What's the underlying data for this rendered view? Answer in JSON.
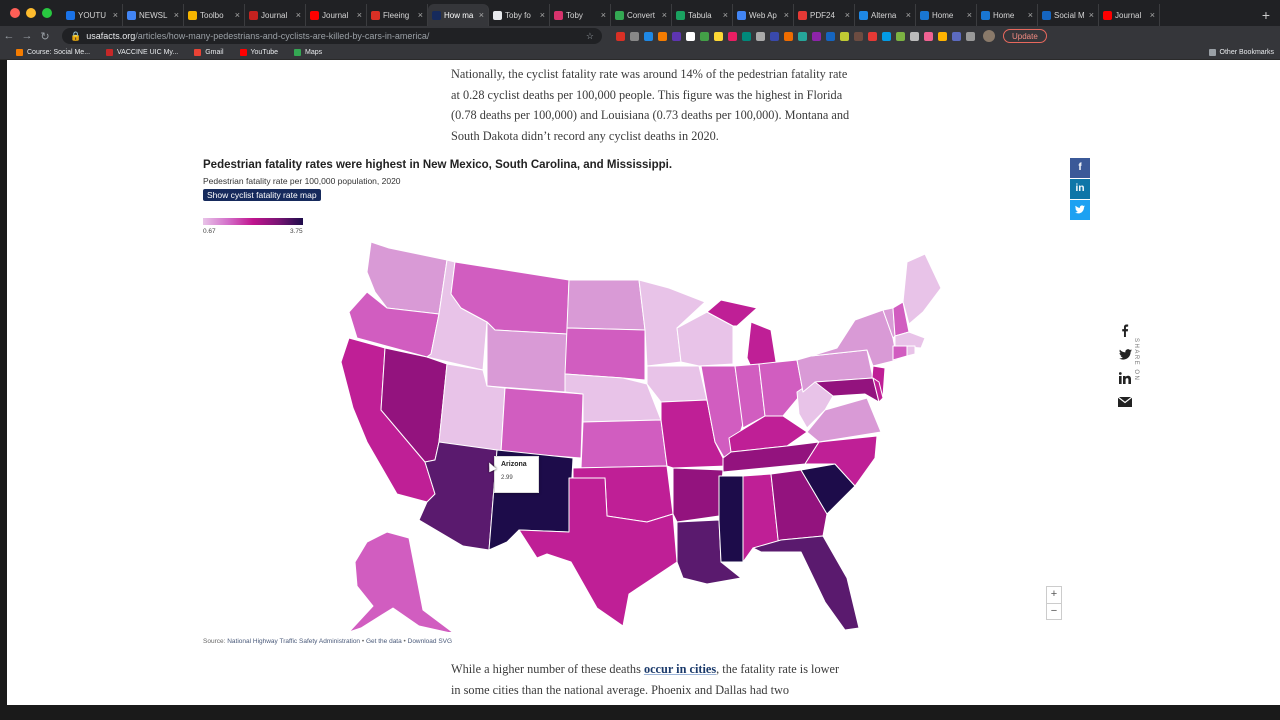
{
  "browser": {
    "tabs": [
      {
        "label": "YOUTU",
        "fav": "#1a73e8"
      },
      {
        "label": "NEWSL",
        "fav": "#4285f4"
      },
      {
        "label": "Toolbo",
        "fav": "#f4b400"
      },
      {
        "label": "Journal",
        "fav": "#c5221f"
      },
      {
        "label": "Journal",
        "fav": "#ff0000"
      },
      {
        "label": "Fleeing",
        "fav": "#d93025"
      },
      {
        "label": "How ma",
        "fav": "#162a5c",
        "active": true
      },
      {
        "label": "Toby fo",
        "fav": "#e8eaed"
      },
      {
        "label": "Toby",
        "fav": "#d6336c"
      },
      {
        "label": "Convert",
        "fav": "#34a853"
      },
      {
        "label": "Tabula",
        "fav": "#1aa260"
      },
      {
        "label": "Web Ap",
        "fav": "#4285f4"
      },
      {
        "label": "PDF24",
        "fav": "#e53935"
      },
      {
        "label": "Alterna",
        "fav": "#1e88e5"
      },
      {
        "label": "Home",
        "fav": "#1976d2"
      },
      {
        "label": "Home",
        "fav": "#1976d2"
      },
      {
        "label": "Social M",
        "fav": "#1565c0"
      },
      {
        "label": "Journal",
        "fav": "#ff0000"
      }
    ],
    "url_host": "usafacts.org",
    "url_path": "/articles/how-many-pedestrians-and-cyclists-are-killed-by-cars-in-america/",
    "update_label": "Update",
    "bookmarks": [
      {
        "label": "Course: Social Me...",
        "color": "#f57c00"
      },
      {
        "label": "VACCINE UIC My...",
        "color": "#c62828"
      },
      {
        "label": "Gmail",
        "color": "#ea4335"
      },
      {
        "label": "YouTube",
        "color": "#ff0000"
      },
      {
        "label": "Maps",
        "color": "#34a853"
      }
    ],
    "other_bookmarks": "Other Bookmarks",
    "newtab_icon": "plus-icon"
  },
  "article": {
    "para1": "Nationally, the cyclist fatality rate was around 14% of the pedestrian fatality rate at 0.28 cyclist deaths per 100,000 people. This figure was the highest in Florida (0.78 deaths per 100,000) and Louisiana (0.73 deaths per 100,000). Montana and South Dakota didn’t record any cyclist deaths in 2020.",
    "para2_before": "While a higher number of these deaths ",
    "para2_link": "occur in cities",
    "para2_after": ", the fatality rate is lower in some cities than the national average. Phoenix and Dallas had two"
  },
  "viz": {
    "title": "Pedestrian fatality rates were highest in New Mexico, South Carolina, and Mississippi.",
    "subtitle": "Pedestrian fatality rate per 100,000 population, 2020",
    "toggle_label": "Show cyclist fatality rate map",
    "legend_min": "0.67",
    "legend_max": "3.75",
    "tooltip_state": "Arizona",
    "tooltip_value": "2.99",
    "zoom_in": "+",
    "zoom_out": "−",
    "source_prefix": "Source: ",
    "source_link": "National Highway Traffic Safety Administration",
    "get_data": "Get the data",
    "download_svg": "Download SVG",
    "sep": " • ",
    "share_small": [
      "f",
      "in",
      "twitter-icon"
    ],
    "share_label": "SHARE ON"
  },
  "colors": {
    "lowest": "#e8c3e8",
    "low": "#d99ad6",
    "mid": "#d15dc0",
    "high": "#bf1f96",
    "higher": "#93137e",
    "dark": "#5a1a6e",
    "darkest": "#1d0c4a",
    "facebook": "#3b5998",
    "linkedin": "#0e76a8",
    "twitter": "#1da1f2"
  }
}
